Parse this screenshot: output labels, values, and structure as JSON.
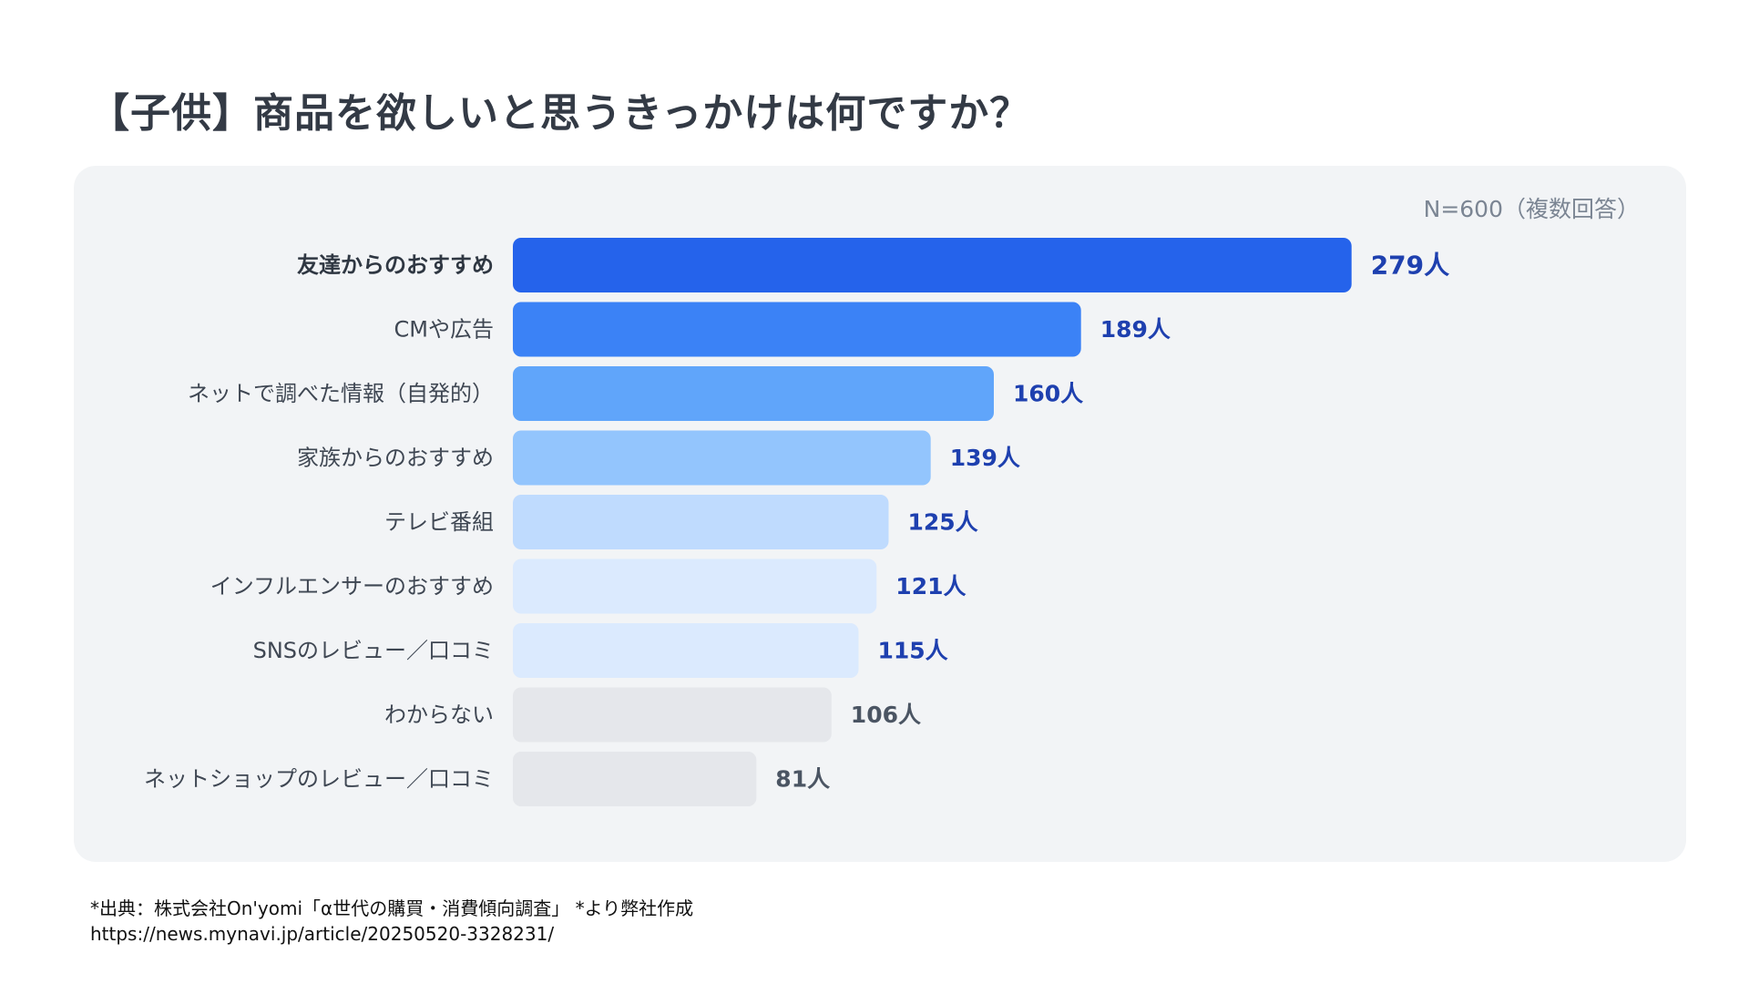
{
  "chart_data": {
    "type": "bar",
    "orientation": "horizontal",
    "title": "【子供】商品を欲しいと思うきっかけは何ですか？",
    "note": "N=600（複数回答）",
    "unit": "人",
    "categories": [
      "友達からのおすすめ",
      "CMや広告",
      "ネットで調べた情報（自発的）",
      "家族からのおすすめ",
      "テレビ番組",
      "インフルエンサーのおすすめ",
      "SNSのレビュー／口コミ",
      "わからない",
      "ネットショップのレビュー／口コミ"
    ],
    "values": [
      279,
      189,
      160,
      139,
      125,
      121,
      115,
      106,
      81
    ],
    "value_labels": [
      "279人",
      "189人",
      "160人",
      "139人",
      "125人",
      "121人",
      "115人",
      "106人",
      "81人"
    ],
    "highlight_index": 0,
    "bar_colors": [
      "#2563eb",
      "#3b82f6",
      "#60a5fa",
      "#93c5fd",
      "#bfdbfe",
      "#dbeafe",
      "#dbeafe",
      "#e5e7eb",
      "#e5e7eb"
    ],
    "label_colors": [
      "#1e40af",
      "#1e40af",
      "#1e40af",
      "#1e40af",
      "#1e40af",
      "#1e40af",
      "#1e40af",
      "#4b5563",
      "#4b5563"
    ],
    "grid": false,
    "legend": "none"
  },
  "source": {
    "line1": "*出典：株式会社On'yomi「α世代の購買・消費傾向調査」 *より弊社作成",
    "line2": "https://news.mynavi.jp/article/20250520-3328231/"
  }
}
